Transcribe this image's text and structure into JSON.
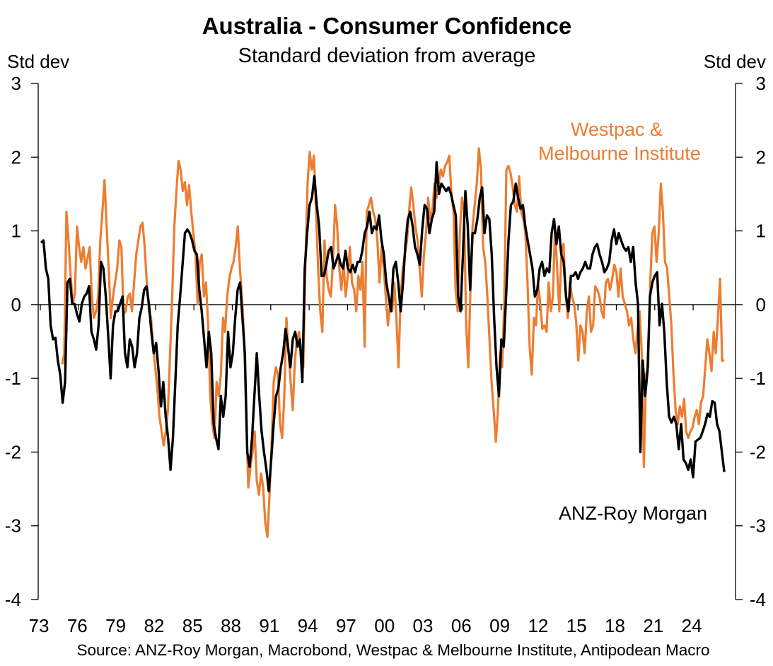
{
  "chart_data": {
    "type": "line",
    "title": "Australia - Consumer Confidence",
    "subtitle": "Standard deviation from average",
    "ylabel_left": "Std dev",
    "ylabel_right": "Std dev",
    "ylim": [
      -4,
      3
    ],
    "yticks": [
      "3",
      "2",
      "1",
      "0",
      "-1",
      "-2",
      "-3",
      "-4"
    ],
    "ytick_values": [
      3,
      2,
      1,
      0,
      -1,
      -2,
      -3,
      -4
    ],
    "xlim": [
      1973,
      2027
    ],
    "xticks": [
      "73",
      "76",
      "79",
      "82",
      "85",
      "88",
      "91",
      "94",
      "97",
      "00",
      "03",
      "06",
      "09",
      "12",
      "15",
      "18",
      "21",
      "24"
    ],
    "xtick_values": [
      1973,
      1976,
      1979,
      1982,
      1985,
      1988,
      1991,
      1994,
      1997,
      2000,
      2003,
      2006,
      2009,
      2012,
      2015,
      2018,
      2021,
      2024
    ],
    "zero_line": true,
    "grid": false,
    "source": "Source: ANZ-Roy Morgan, Macrobond, Westpac & Melbourne Institute, Antipodean Macro",
    "series": [
      {
        "name": "Westpac & Melbourne Institute",
        "label_lines": [
          "Westpac &",
          "Melbourne Institute"
        ],
        "color": "#ED7D31",
        "start": 1974.71,
        "end": 2026.43,
        "values": [
          -0.81,
          -0.66,
          1.26,
          0.87,
          0.39,
          0.01,
          0.15,
          1.06,
          0.78,
          0.58,
          0.78,
          0.49,
          0.63,
          0.78,
          0.11,
          -0.18,
          -0.09,
          0.11,
          0.87,
          1.26,
          1.69,
          1.06,
          0.49,
          -0.18,
          0.11,
          0.3,
          0.49,
          0.87,
          0.78,
          -0.13,
          -0.09,
          0.11,
          0.15,
          -0.09,
          0.3,
          0.68,
          0.87,
          1.06,
          1.11,
          0.78,
          0.3,
          -0.09,
          -0.18,
          -0.57,
          -0.85,
          -1.14,
          -1.52,
          -1.72,
          -1.91,
          -1.72,
          -1.43,
          -0.66,
          0.11,
          1.06,
          1.54,
          1.95,
          1.83,
          1.54,
          1.66,
          1.35,
          1.62,
          1.26,
          0.97,
          0.68,
          0.01,
          0.58,
          0.68,
          0.11,
          0.3,
          -0.28,
          -1.24,
          -1.62,
          -1.81,
          -1.05,
          -1.24,
          -0.95,
          -0.18,
          -0.37,
          0.11,
          0.35,
          0.49,
          0.58,
          0.78,
          1.06,
          0.49,
          0.11,
          -0.47,
          -1.52,
          -2.48,
          -2.2,
          -2.0,
          -1.72,
          -2.39,
          -2.58,
          -2.29,
          -2.48,
          -2.96,
          -3.15,
          -2.58,
          -1.91,
          -1.05,
          -0.85,
          -0.95,
          -1.62,
          -1.81,
          -1.24,
          -0.18,
          -0.66,
          -1.05,
          -1.43,
          -0.76,
          -0.47,
          -0.37,
          -0.66,
          -0.85,
          0.58,
          1.64,
          2.07,
          1.83,
          2.02,
          1.26,
          0.49,
          -0.09,
          -0.37,
          0.87,
          0.39,
          0.2,
          0.11,
          0.58,
          1.35,
          1.06,
          0.49,
          0.2,
          0.58,
          0.11,
          0.39,
          0.78,
          0.3,
          0.2,
          -0.09,
          0.39,
          0.2,
          0.58,
          -0.57,
          1.26,
          1.35,
          1.45,
          1.26,
          1.16,
          0.87,
          0.3,
          0.78,
          0.49,
          0.11,
          -0.28,
          0.01,
          -0.09,
          0.3,
          -0.18,
          -0.85,
          0.11,
          0.49,
          0.68,
          0.87,
          1.26,
          1.59,
          1.35,
          1.06,
          0.87,
          0.49,
          0.11,
          0.68,
          0.97,
          1.45,
          1.16,
          1.26,
          1.64,
          1.45,
          1.64,
          1.83,
          1.74,
          1.88,
          1.93,
          2.02,
          1.5,
          1.26,
          0.2,
          -0.09,
          0.97,
          1.45,
          1.26,
          -0.28,
          -0.85,
          0.2,
          1.06,
          1.35,
          1.64,
          2.12,
          1.83,
          0.78,
          0.58,
          0.11,
          -0.47,
          -1.05,
          -1.43,
          -1.86,
          -1.43,
          -0.66,
          -0.85,
          0.01,
          1.83,
          1.88,
          1.78,
          1.59,
          1.35,
          1.26,
          1.74,
          1.26,
          1.16,
          0.97,
          0.3,
          -0.57,
          -0.95,
          -0.18,
          -0.28,
          0.3,
          0.01,
          -0.33,
          -0.28,
          -0.37,
          0.3,
          -0.09,
          0.11,
          1.06,
          0.49,
          -0.09,
          0.68,
          0.82,
          0.15,
          -0.18,
          0.3,
          0.11,
          0.01,
          -0.23,
          -0.76,
          -0.28,
          -0.37,
          -0.66,
          -0.09,
          0.11,
          -0.37,
          -0.28,
          0.25,
          0.2,
          0.11,
          -0.09,
          -0.18,
          0.3,
          0.35,
          0.2,
          0.35,
          0.54,
          0.44,
          0.11,
          0.49,
          0.11,
          0.01,
          -0.09,
          -0.28,
          -0.18,
          -0.47,
          -0.66,
          -0.33,
          -0.09,
          -0.66,
          -2.2,
          -0.95,
          -0.85,
          0.3,
          0.97,
          1.06,
          0.58,
          0.97,
          1.64,
          1.26,
          0.58,
          0.49,
          0.11,
          -0.28,
          -0.95,
          -1.43,
          -1.62,
          -1.38,
          -1.52,
          -1.28,
          -1.72,
          -1.81,
          -1.72,
          -1.67,
          -1.52,
          -1.43,
          -1.62,
          -1.33,
          -1.24,
          -0.85,
          -0.47,
          -0.66,
          -0.9,
          -0.37,
          -0.66,
          -0.18,
          0.35,
          -0.76,
          -0.76
        ]
      },
      {
        "name": "ANZ-Roy Morgan",
        "color": "#000000",
        "start": 1973.06,
        "end": 2026.43,
        "values": [
          0.84,
          0.87,
          0.49,
          0.35,
          -0.28,
          -0.47,
          -0.45,
          -0.76,
          -0.95,
          -1.33,
          -1.05,
          0.3,
          0.35,
          0.01,
          0.01,
          -0.13,
          -0.23,
          0.01,
          0.11,
          0.15,
          0.25,
          -0.37,
          -0.47,
          -0.61,
          -0.28,
          0.58,
          0.49,
          0.11,
          -0.42,
          -1.0,
          -0.28,
          -0.09,
          -0.09,
          0.01,
          0.11,
          -0.66,
          -0.85,
          -0.47,
          -0.57,
          -0.85,
          -0.66,
          -0.18,
          -0.04,
          0.2,
          0.25,
          0.01,
          -0.37,
          -0.66,
          -0.52,
          -0.9,
          -1.38,
          -1.05,
          -1.52,
          -1.81,
          -2.24,
          -1.81,
          -1.05,
          -0.28,
          0.11,
          0.54,
          0.97,
          1.02,
          0.97,
          0.87,
          0.73,
          0.68,
          0.2,
          -0.09,
          -0.47,
          -0.85,
          -0.37,
          -0.66,
          -1.62,
          -1.81,
          -1.96,
          -1.24,
          -1.52,
          -1.24,
          -0.37,
          -0.85,
          -0.66,
          -0.18,
          0.2,
          0.3,
          -0.18,
          -0.66,
          -2.0,
          -2.2,
          -1.81,
          -1.24,
          -0.66,
          -1.24,
          -1.72,
          -2.0,
          -2.24,
          -2.53,
          -2.1,
          -1.62,
          -1.24,
          -1.14,
          -0.85,
          -0.66,
          -0.33,
          -0.57,
          -0.85,
          -0.47,
          -0.37,
          -0.57,
          -0.47,
          -1.05,
          0.49,
          0.97,
          1.35,
          1.45,
          1.74,
          1.35,
          1.06,
          0.39,
          0.39,
          0.54,
          0.73,
          0.78,
          0.49,
          0.58,
          0.68,
          0.54,
          0.49,
          0.73,
          0.49,
          0.44,
          0.54,
          0.44,
          0.58,
          0.58,
          0.73,
          0.97,
          1.06,
          1.26,
          0.97,
          1.06,
          1.02,
          1.21,
          0.87,
          0.68,
          0.3,
          0.11,
          -0.09,
          0.49,
          0.58,
          0.3,
          -0.09,
          0.3,
          0.82,
          1.16,
          1.26,
          1.06,
          0.78,
          0.68,
          0.54,
          1.02,
          1.35,
          1.3,
          0.97,
          1.16,
          1.26,
          1.93,
          1.5,
          1.64,
          1.59,
          1.54,
          1.59,
          1.5,
          1.35,
          1.21,
          0.11,
          -0.09,
          0.68,
          1.54,
          1.06,
          0.2,
          0.97,
          0.97,
          1.16,
          1.45,
          1.59,
          0.97,
          1.21,
          1.16,
          0.68,
          -0.18,
          -0.85,
          -1.24,
          -0.47,
          -0.57,
          0.11,
          0.87,
          1.35,
          1.4,
          1.64,
          1.45,
          1.3,
          1.35,
          1.06,
          0.87,
          0.68,
          0.49,
          0.11,
          0.2,
          0.49,
          0.58,
          0.39,
          0.49,
          0.44,
          0.97,
          1.16,
          0.82,
          1.06,
          0.68,
          0.58,
          0.11,
          -0.09,
          0.39,
          0.39,
          0.44,
          0.35,
          0.44,
          0.49,
          0.58,
          0.49,
          0.49,
          0.68,
          0.78,
          0.82,
          0.68,
          0.58,
          0.44,
          0.49,
          0.58,
          0.87,
          1.02,
          0.82,
          0.97,
          0.87,
          0.78,
          0.73,
          0.78,
          0.58,
          0.78,
          0.3,
          0.01,
          -2.0,
          -0.76,
          -1.24,
          -0.9,
          0.11,
          0.3,
          0.39,
          0.44,
          -0.28,
          0.01,
          -0.37,
          -1.05,
          -1.52,
          -1.6,
          -1.52,
          -1.62,
          -1.96,
          -1.62,
          -2.1,
          -2.15,
          -2.24,
          -2.1,
          -2.34,
          -1.86,
          -1.83,
          -1.81,
          -1.72,
          -1.62,
          -1.48,
          -1.52,
          -1.31,
          -1.33,
          -1.62,
          -1.72,
          -2.0,
          -2.27
        ]
      }
    ]
  }
}
